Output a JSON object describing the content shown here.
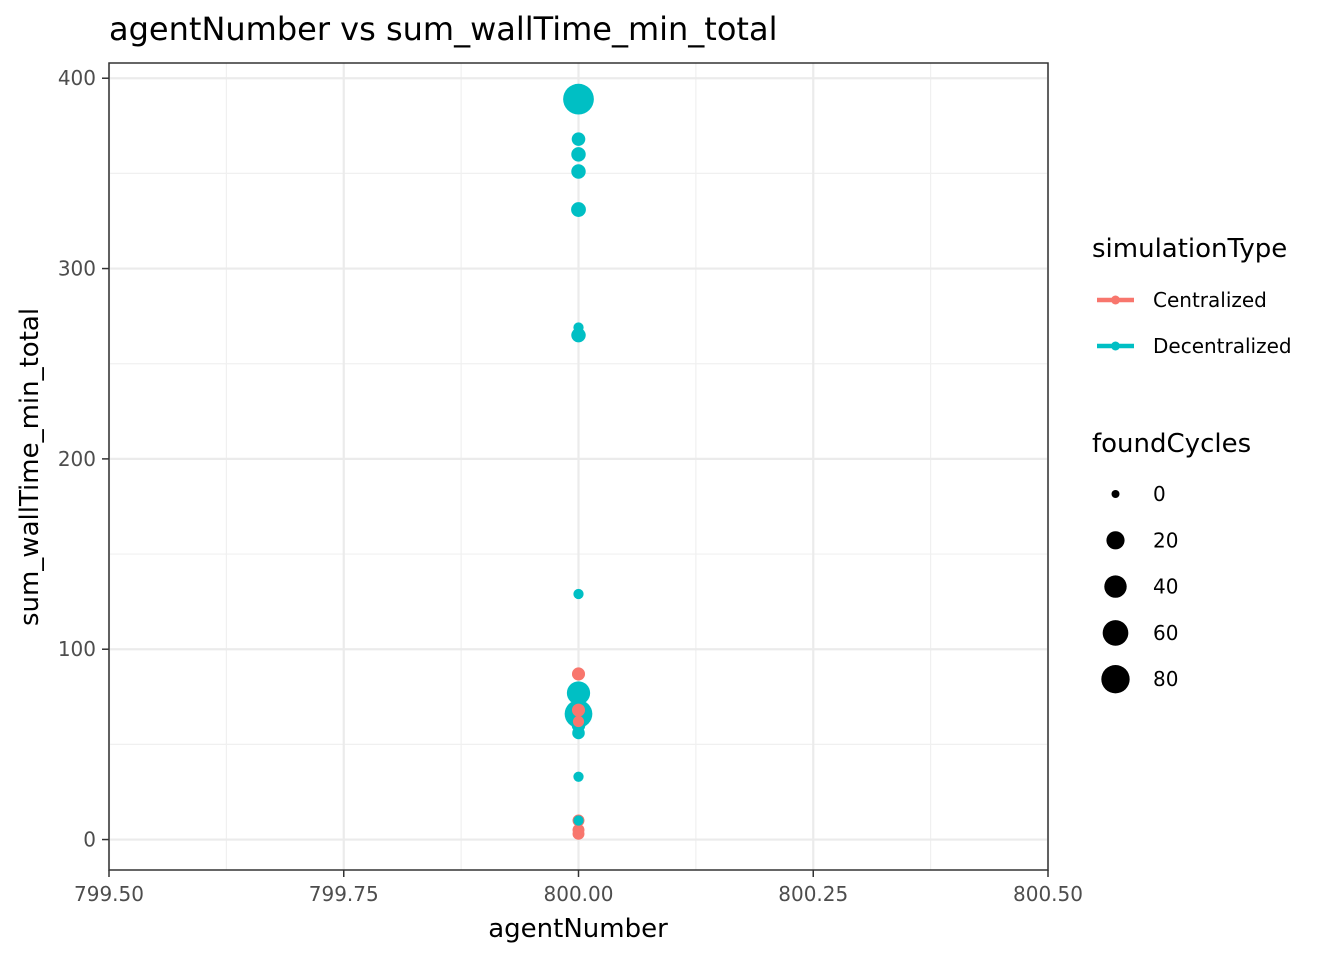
{
  "chart_data": {
    "type": "scatter",
    "title": "agentNumber  vs  sum_wallTime_min_total",
    "xlabel": "agentNumber",
    "ylabel": "sum_wallTime_min_total",
    "xlim": [
      799.5,
      800.5
    ],
    "ylim": [
      -16,
      408
    ],
    "x_ticks": [
      799.5,
      799.75,
      800.0,
      800.25,
      800.5
    ],
    "x_tick_labels": [
      "799.50",
      "799.75",
      "800.00",
      "800.25",
      "800.50"
    ],
    "y_ticks": [
      0,
      100,
      200,
      300,
      400
    ],
    "y_tick_labels": [
      "0",
      "100",
      "200",
      "300",
      "400"
    ],
    "grid": true,
    "legend_position": "right",
    "color_legend": {
      "title": "simulationType",
      "entries": [
        {
          "label": "Centralized",
          "color": "#F8766D"
        },
        {
          "label": "Decentralized",
          "color": "#00BFC4"
        }
      ]
    },
    "size_legend": {
      "title": "foundCycles",
      "entries": [
        {
          "label": "0",
          "value": 0
        },
        {
          "label": "20",
          "value": 20
        },
        {
          "label": "40",
          "value": 40
        },
        {
          "label": "60",
          "value": 60
        },
        {
          "label": "80",
          "value": 80
        }
      ]
    },
    "series": [
      {
        "name": "Centralized",
        "color": "#F8766D",
        "points": [
          {
            "x": 800.0,
            "y": 87,
            "foundCycles": 5
          },
          {
            "x": 800.0,
            "y": 68,
            "foundCycles": 5
          },
          {
            "x": 800.0,
            "y": 62,
            "foundCycles": 2
          },
          {
            "x": 800.0,
            "y": 10,
            "foundCycles": 3
          },
          {
            "x": 800.0,
            "y": 5,
            "foundCycles": 3
          },
          {
            "x": 800.0,
            "y": 3,
            "foundCycles": 3
          }
        ]
      },
      {
        "name": "Decentralized",
        "color": "#00BFC4",
        "points": [
          {
            "x": 800.0,
            "y": 389,
            "foundCycles": 100
          },
          {
            "x": 800.0,
            "y": 368,
            "foundCycles": 6
          },
          {
            "x": 800.0,
            "y": 360,
            "foundCycles": 8
          },
          {
            "x": 800.0,
            "y": 351,
            "foundCycles": 8
          },
          {
            "x": 800.0,
            "y": 331,
            "foundCycles": 9
          },
          {
            "x": 800.0,
            "y": 269,
            "foundCycles": 1
          },
          {
            "x": 800.0,
            "y": 265,
            "foundCycles": 8
          },
          {
            "x": 800.0,
            "y": 129,
            "foundCycles": 1
          },
          {
            "x": 800.0,
            "y": 77,
            "foundCycles": 45
          },
          {
            "x": 800.0,
            "y": 66,
            "foundCycles": 75
          },
          {
            "x": 800.0,
            "y": 60,
            "foundCycles": 6
          },
          {
            "x": 800.0,
            "y": 56,
            "foundCycles": 4
          },
          {
            "x": 800.0,
            "y": 33,
            "foundCycles": 1
          },
          {
            "x": 800.0,
            "y": 10,
            "foundCycles": 1
          }
        ]
      }
    ]
  }
}
